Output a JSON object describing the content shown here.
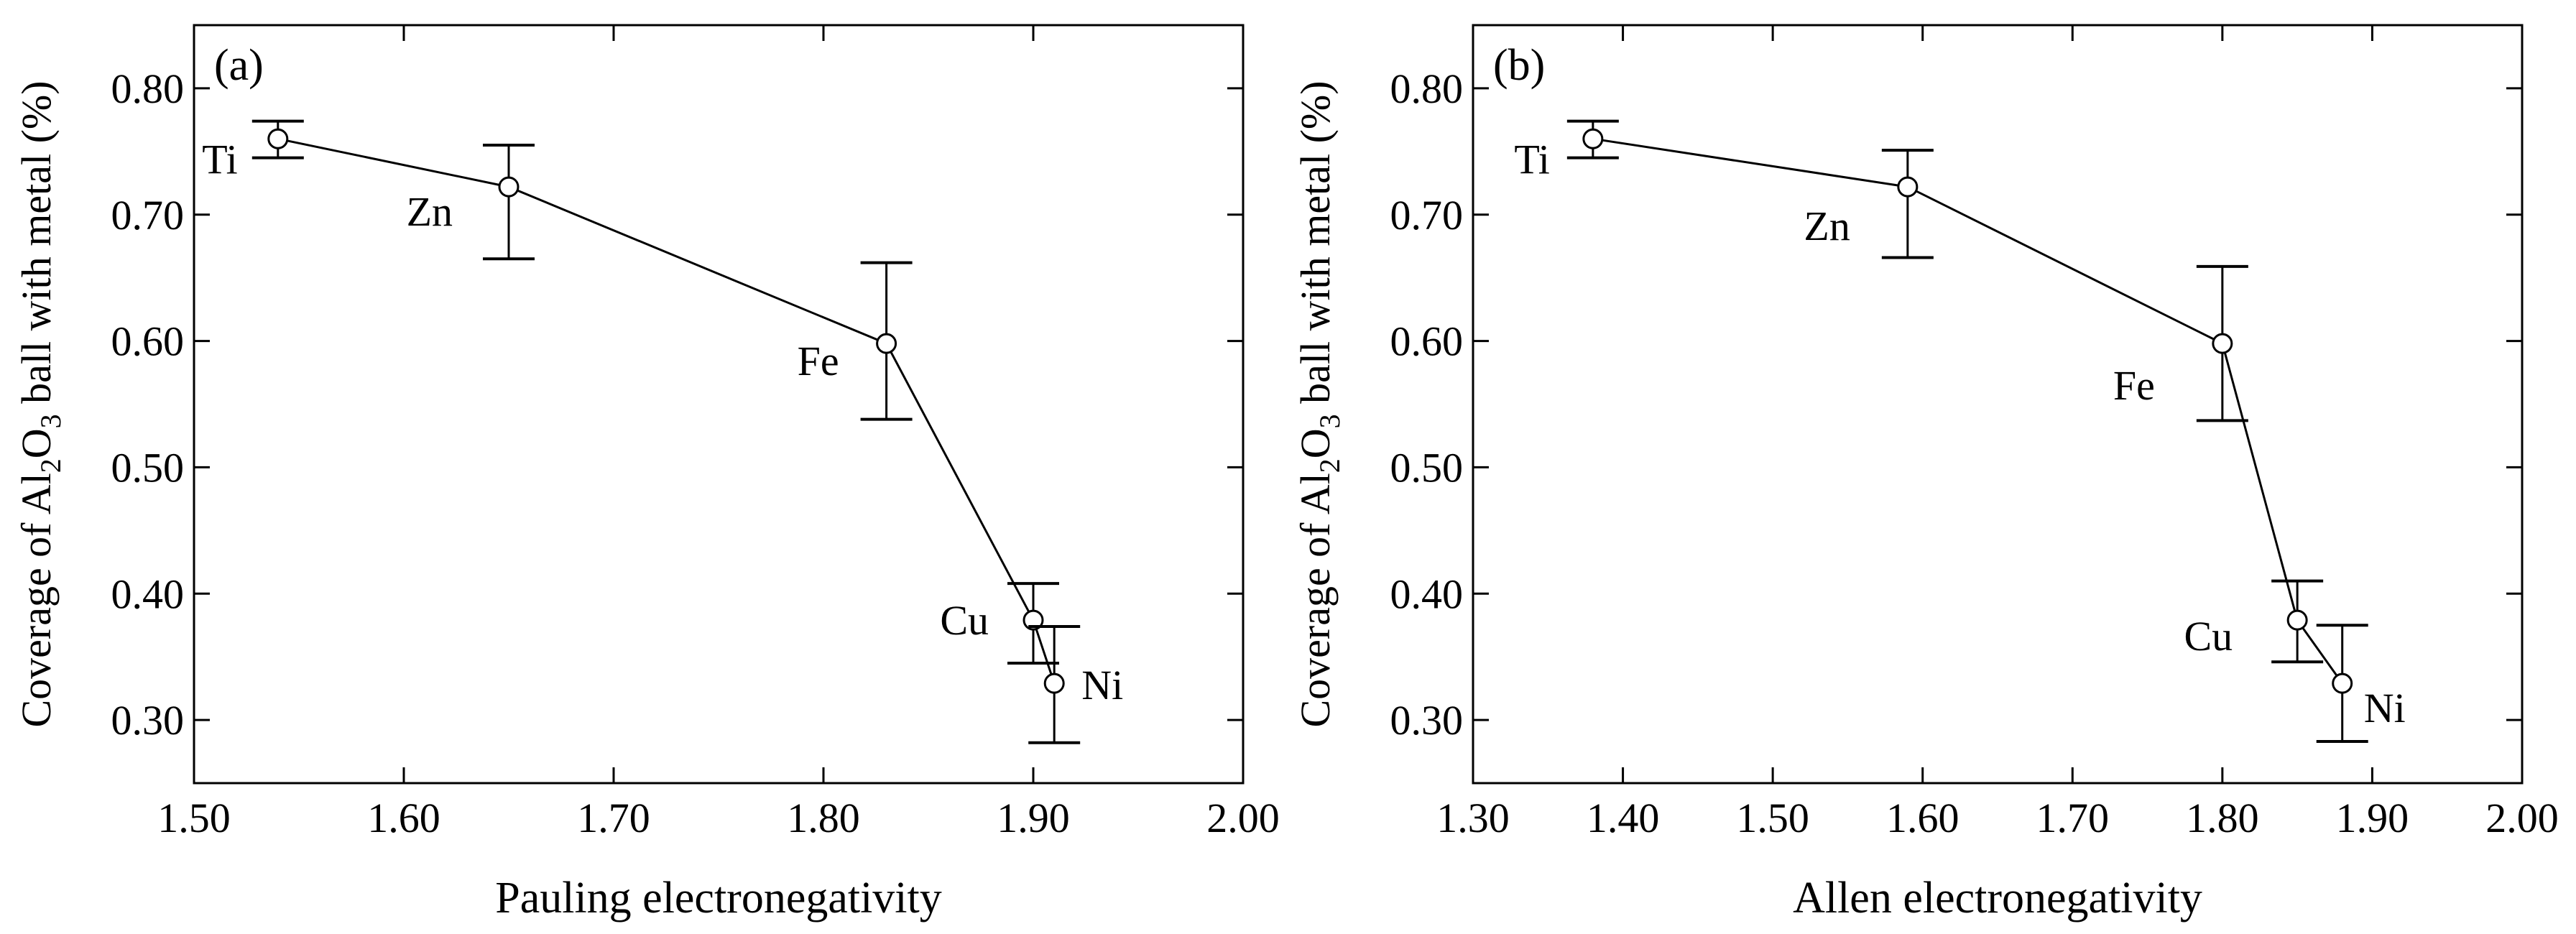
{
  "figure": {
    "background": "#ffffff",
    "ink": "#000000"
  },
  "chart_data": [
    {
      "type": "line",
      "panel_label": "(a)",
      "title": "",
      "xlabel": "Pauling electronegativity",
      "ylabel": "Coverage of Al2O3 ball with metal (%)",
      "ylabel_parts": [
        "Coverage of Al",
        "2",
        "O",
        "3",
        " ball with metal (%)"
      ],
      "xlim": [
        1.5,
        2.0
      ],
      "ylim": [
        0.25,
        0.85
      ],
      "xticks": [
        1.5,
        1.6,
        1.7,
        1.8,
        1.9,
        2.0
      ],
      "xtick_labels": [
        "1.50",
        "1.60",
        "1.70",
        "1.80",
        "1.90",
        "2.00"
      ],
      "yticks": [
        0.3,
        0.4,
        0.5,
        0.6,
        0.7,
        0.8
      ],
      "ytick_labels": [
        "0.30",
        "0.40",
        "0.50",
        "0.60",
        "0.70",
        "0.80"
      ],
      "grid": false,
      "legend": "none",
      "series": [
        {
          "name": "Coverage",
          "marker": "open-circle",
          "points": [
            {
              "label": "Ti",
              "x": 1.54,
              "y": 0.76,
              "err_low": 0.745,
              "err_high": 0.774
            },
            {
              "label": "Zn",
              "x": 1.65,
              "y": 0.722,
              "err_low": 0.665,
              "err_high": 0.755
            },
            {
              "label": "Fe",
              "x": 1.83,
              "y": 0.598,
              "err_low": 0.538,
              "err_high": 0.662
            },
            {
              "label": "Cu",
              "x": 1.9,
              "y": 0.379,
              "err_low": 0.345,
              "err_high": 0.408
            },
            {
              "label": "Ni",
              "x": 1.91,
              "y": 0.329,
              "err_low": 0.282,
              "err_high": 0.374
            }
          ]
        }
      ]
    },
    {
      "type": "line",
      "panel_label": "(b)",
      "title": "",
      "xlabel": "Allen electronegativity",
      "ylabel": "Coverage of Al2O3 ball with metal (%)",
      "ylabel_parts": [
        "Coverage of Al",
        "2",
        "O",
        "3",
        " ball with metal (%)"
      ],
      "xlim": [
        1.3,
        2.0
      ],
      "ylim": [
        0.25,
        0.85
      ],
      "xticks": [
        1.3,
        1.4,
        1.5,
        1.6,
        1.7,
        1.8,
        1.9,
        2.0
      ],
      "xtick_labels": [
        "1.30",
        "1.40",
        "1.50",
        "1.60",
        "1.70",
        "1.80",
        "1.90",
        "2.00"
      ],
      "yticks": [
        0.3,
        0.4,
        0.5,
        0.6,
        0.7,
        0.8
      ],
      "ytick_labels": [
        "0.30",
        "0.40",
        "0.50",
        "0.60",
        "0.70",
        "0.80"
      ],
      "grid": false,
      "legend": "none",
      "series": [
        {
          "name": "Coverage",
          "marker": "open-circle",
          "points": [
            {
              "label": "Ti",
              "x": 1.38,
              "y": 0.76,
              "err_low": 0.745,
              "err_high": 0.774
            },
            {
              "label": "Zn",
              "x": 1.59,
              "y": 0.722,
              "err_low": 0.666,
              "err_high": 0.751
            },
            {
              "label": "Fe",
              "x": 1.8,
              "y": 0.598,
              "err_low": 0.537,
              "err_high": 0.659
            },
            {
              "label": "Cu",
              "x": 1.85,
              "y": 0.379,
              "err_low": 0.346,
              "err_high": 0.41
            },
            {
              "label": "Ni",
              "x": 1.88,
              "y": 0.329,
              "err_low": 0.283,
              "err_high": 0.375
            }
          ]
        }
      ]
    }
  ]
}
